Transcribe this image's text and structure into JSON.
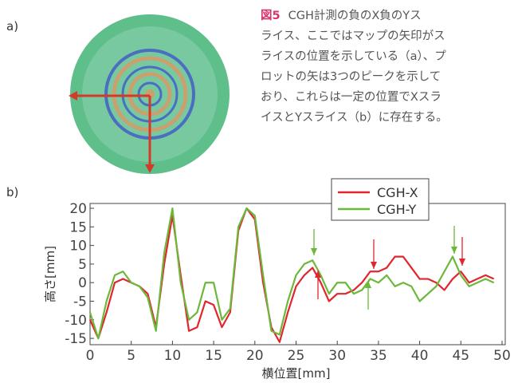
{
  "panel_a": {
    "label": "a)"
  },
  "caption": {
    "figure_label": "図5",
    "lines": [
      "CGH計測の負のX負のYス",
      "ライス、ここではマップの矢印がス",
      "ライスの位置を示している（a）、プ",
      "ロットの矢は3つのピークを示して",
      "おり、これらは一定の位置でXスラ",
      "イスとYスライス（b）に存在する。"
    ]
  },
  "chart_data": {
    "type": "line",
    "panel_label": "b)",
    "x_label": "横位置[mm]",
    "y_label": "高さ[mm]",
    "x": [
      0,
      1,
      2,
      3,
      4,
      5,
      6,
      7,
      8,
      9,
      10,
      11,
      12,
      13,
      14,
      15,
      16,
      17,
      18,
      19,
      20,
      21,
      22,
      23,
      24,
      25,
      26,
      27,
      28,
      29,
      30,
      31,
      32,
      33,
      34,
      35,
      36,
      37,
      38,
      39,
      40,
      41,
      42,
      43,
      44,
      45,
      46,
      47,
      48,
      49
    ],
    "series": [
      {
        "name": "CGH-X",
        "color": "#e0262e",
        "values": [
          -10,
          -15,
          -8,
          0,
          1,
          0,
          -1,
          -3,
          -12,
          5,
          18,
          2,
          -13,
          -12,
          -5,
          -6,
          -12,
          -8,
          14,
          20,
          17,
          0,
          -12,
          -16,
          -8,
          -1,
          2,
          4,
          0,
          -5,
          -3,
          -3,
          -2,
          0,
          3,
          3,
          4,
          7,
          7,
          4,
          1,
          1,
          0,
          -2,
          1,
          3,
          0,
          1,
          2,
          1
        ]
      },
      {
        "name": "CGH-Y",
        "color": "#6cb83a",
        "values": [
          -8,
          -15,
          -5,
          2,
          3,
          0,
          -1,
          -4,
          -13,
          8,
          20,
          0,
          -10,
          -8,
          0,
          0,
          -10,
          -7,
          15,
          20,
          18,
          2,
          -13,
          -14,
          -5,
          2,
          5,
          6,
          2,
          -3,
          0,
          0,
          -3,
          -2,
          1,
          0,
          2,
          -1,
          0,
          -1,
          -5,
          -3,
          -1,
          3,
          7,
          2,
          -1,
          0,
          1,
          0
        ]
      }
    ],
    "xlim": [
      0,
      50
    ],
    "xticks": [
      0,
      5,
      10,
      15,
      20,
      25,
      30,
      35,
      40,
      45,
      50
    ],
    "ylim": [
      -16.7,
      21.3
    ],
    "yticks": [
      20,
      15,
      10,
      5,
      0,
      -5,
      -10,
      -15
    ],
    "legend": "upper right"
  }
}
